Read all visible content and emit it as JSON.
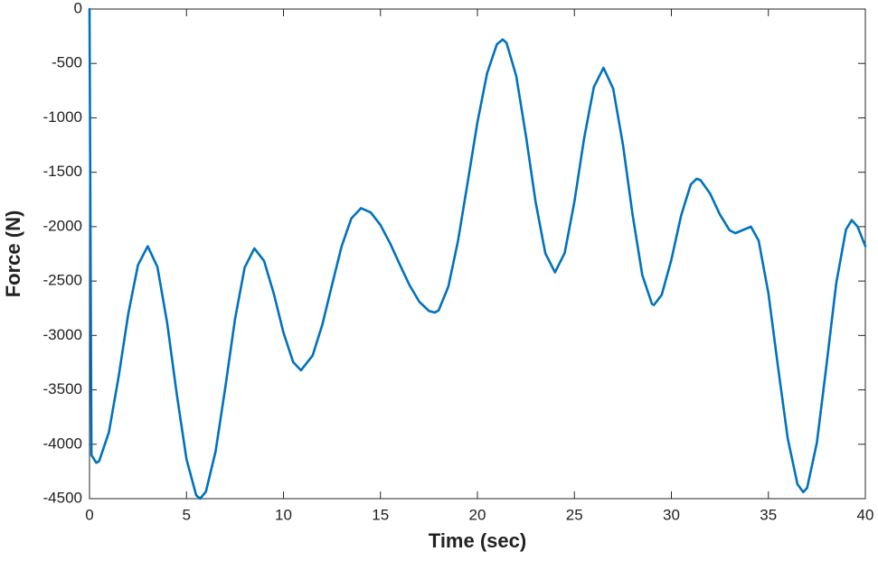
{
  "chart_data": {
    "type": "line",
    "xlabel": "Time (sec)",
    "ylabel": "Force (N)",
    "x": [
      0,
      0.1,
      0.35,
      0.5,
      1.0,
      1.5,
      2.0,
      2.5,
      3.0,
      3.5,
      4.0,
      4.5,
      5.0,
      5.5,
      5.7,
      6.0,
      6.5,
      7.0,
      7.5,
      8.0,
      8.5,
      9.0,
      9.5,
      10.0,
      10.5,
      10.9,
      11.5,
      12.0,
      12.5,
      13.0,
      13.5,
      14.0,
      14.5,
      15.0,
      15.5,
      16.0,
      16.5,
      17.0,
      17.5,
      17.8,
      18.0,
      18.5,
      19.0,
      19.5,
      20.0,
      20.5,
      21.0,
      21.3,
      21.5,
      22.0,
      22.5,
      23.0,
      23.5,
      24.0,
      24.5,
      25.0,
      25.5,
      26.0,
      26.5,
      27.0,
      27.5,
      28.0,
      28.5,
      29.0,
      29.1,
      29.5,
      30.0,
      30.5,
      31.0,
      31.3,
      31.5,
      32.0,
      32.5,
      33.0,
      33.3,
      33.7,
      34.1,
      34.5,
      35.0,
      35.5,
      36.0,
      36.5,
      36.8,
      37.0,
      37.5,
      38.0,
      38.5,
      39.0,
      39.3,
      39.6,
      40.0
    ],
    "series": [
      {
        "name": "Force",
        "color": "#0072BD",
        "values": [
          0,
          -4100,
          -4170,
          -4154,
          -3889,
          -3380,
          -2799,
          -2352,
          -2180,
          -2370,
          -2881,
          -3541,
          -4137,
          -4469,
          -4500,
          -4436,
          -4066,
          -3479,
          -2851,
          -2375,
          -2200,
          -2315,
          -2615,
          -2974,
          -3245,
          -3320,
          -3186,
          -2903,
          -2538,
          -2180,
          -1924,
          -1830,
          -1870,
          -1985,
          -2154,
          -2349,
          -2538,
          -2689,
          -2775,
          -2790,
          -2770,
          -2551,
          -2130,
          -1590,
          -1041,
          -590,
          -325,
          -280,
          -310,
          -615,
          -1164,
          -1774,
          -2244,
          -2420,
          -2241,
          -1771,
          -1189,
          -719,
          -540,
          -732,
          -1244,
          -1891,
          -2445,
          -2711,
          -2720,
          -2627,
          -2304,
          -1899,
          -1612,
          -1560,
          -1572,
          -1697,
          -1888,
          -2033,
          -2060,
          -2030,
          -2000,
          -2129,
          -2610,
          -3291,
          -3948,
          -4367,
          -4440,
          -4400,
          -3987,
          -3268,
          -2520,
          -2028,
          -1940,
          -2000,
          -2180
        ]
      }
    ],
    "xlim": [
      0,
      40
    ],
    "xticks": [
      0,
      5,
      10,
      15,
      20,
      25,
      30,
      35,
      40
    ],
    "ylim": [
      -4500,
      0
    ],
    "yticks": [
      -4500,
      -4000,
      -3500,
      -3000,
      -2500,
      -2000,
      -1500,
      -1000,
      -500,
      0
    ],
    "grid": false
  }
}
